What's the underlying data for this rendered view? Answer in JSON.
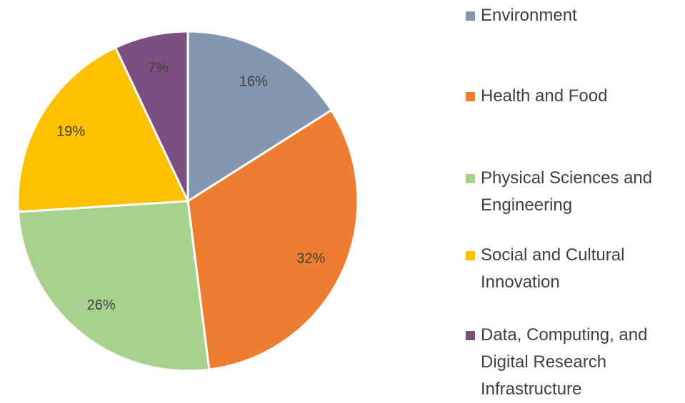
{
  "chart_data": {
    "type": "pie",
    "categories": [
      "Environment",
      "Health and Food",
      "Physical Sciences and Engineering",
      "Social and Cultural Innovation",
      "Data, Computing, and Digital Research Infrastructure"
    ],
    "values": [
      16,
      32,
      26,
      19,
      7
    ],
    "value_labels": [
      "16%",
      "32%",
      "26%",
      "19%",
      "7%"
    ],
    "colors": [
      "#8497b0",
      "#ed7d31",
      "#a9d18e",
      "#ffc000",
      "#7b4f80"
    ],
    "legend": "right"
  }
}
